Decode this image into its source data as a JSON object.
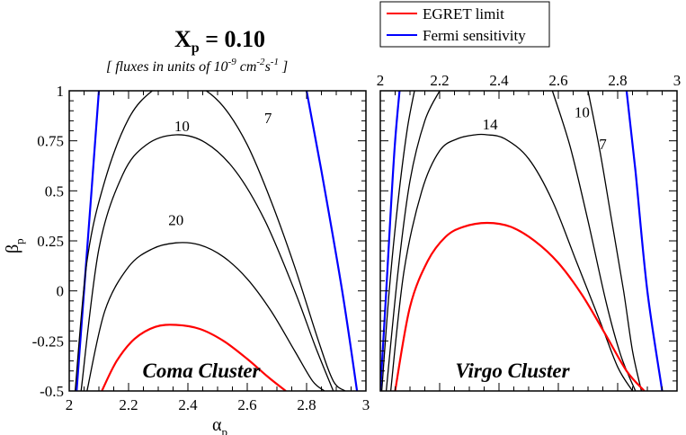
{
  "header": {
    "title_main": "X",
    "title_sub": "p",
    "title_value": " = 0.10",
    "units_prefix": "[ fluxes in units of 10",
    "units_exp1": "-9",
    "units_mid": " cm",
    "units_exp2": "-2",
    "units_s": "s",
    "units_exp3": "-1",
    "units_suffix": " ]"
  },
  "legend": {
    "items": [
      {
        "label": "EGRET limit",
        "color": "#ff0000"
      },
      {
        "label": "Fermi sensitivity",
        "color": "#0000ff"
      }
    ]
  },
  "colors": {
    "egret": "#ff0000",
    "fermi": "#0000ff",
    "contour": "#000000"
  },
  "chart_data": [
    {
      "type": "line",
      "panel_label": "Coma Cluster",
      "xlabel": "α",
      "xlabel_sub": "p",
      "ylabel": "β",
      "ylabel_sub": "p",
      "xlim": [
        2,
        3
      ],
      "ylim": [
        -0.5,
        1
      ],
      "xticks": [
        "2",
        "2.2",
        "2.4",
        "2.6",
        "2.8",
        "3"
      ],
      "yticks": [
        "-0.5",
        "-0.25",
        "0",
        "0.25",
        "0.5",
        "0.75",
        "1"
      ],
      "series": [
        {
          "kind": "fermi",
          "x": [
            2.025,
            2.05,
            2.075,
            2.1
          ],
          "y": [
            -0.5,
            0.0,
            0.5,
            1.0
          ]
        },
        {
          "kind": "fermi",
          "x": [
            2.8,
            2.85,
            2.92,
            2.97
          ],
          "y": [
            1.0,
            0.6,
            0.0,
            -0.5
          ]
        },
        {
          "kind": "contour",
          "x": [
            2.02,
            2.06,
            2.12,
            2.2,
            2.28,
            2.36,
            2.44,
            2.52,
            2.6,
            2.68,
            2.76,
            2.84,
            2.89,
            2.93
          ],
          "y": [
            -0.5,
            0.15,
            0.55,
            0.86,
            1.0,
            1.05,
            1.02,
            0.92,
            0.73,
            0.45,
            0.12,
            -0.25,
            -0.45,
            -0.5
          ]
        },
        {
          "kind": "contour",
          "x": [
            2.04,
            2.1,
            2.18,
            2.26,
            2.36,
            2.46,
            2.56,
            2.66,
            2.76,
            2.83,
            2.89
          ],
          "y": [
            -0.5,
            0.21,
            0.58,
            0.73,
            0.78,
            0.74,
            0.6,
            0.35,
            0.0,
            -0.28,
            -0.5
          ]
        },
        {
          "kind": "contour",
          "x": [
            2.06,
            2.12,
            2.2,
            2.28,
            2.36,
            2.44,
            2.52,
            2.6,
            2.68,
            2.76,
            2.82,
            2.86
          ],
          "y": [
            -0.5,
            -0.1,
            0.12,
            0.21,
            0.24,
            0.23,
            0.17,
            0.06,
            -0.1,
            -0.3,
            -0.45,
            -0.5
          ]
        },
        {
          "kind": "egret",
          "x": [
            2.11,
            2.16,
            2.22,
            2.29,
            2.36,
            2.44,
            2.52,
            2.6,
            2.67,
            2.73
          ],
          "y": [
            -0.5,
            -0.35,
            -0.24,
            -0.18,
            -0.17,
            -0.19,
            -0.25,
            -0.34,
            -0.43,
            -0.5
          ]
        }
      ],
      "contour_labels": [
        {
          "text": "10",
          "x": 2.38,
          "y": 0.78
        },
        {
          "text": "7",
          "x": 2.67,
          "y": 0.82
        },
        {
          "text": "20",
          "x": 2.36,
          "y": 0.31
        }
      ]
    },
    {
      "type": "line",
      "panel_label": "Virgo Cluster",
      "xlim": [
        2,
        3
      ],
      "ylim": [
        -0.5,
        1
      ],
      "xticks": [
        "2",
        "2.2",
        "2.4",
        "2.6",
        "2.8",
        "3"
      ],
      "series": [
        {
          "kind": "fermi",
          "x": [
            2.0,
            2.02,
            2.035,
            2.05,
            2.065
          ],
          "y": [
            -0.5,
            0.0,
            0.4,
            0.75,
            1.0
          ]
        },
        {
          "kind": "fermi",
          "x": [
            2.83,
            2.86,
            2.9,
            2.95
          ],
          "y": [
            1.0,
            0.6,
            0.0,
            -0.5
          ]
        },
        {
          "kind": "contour",
          "x": [
            2.005,
            2.03,
            2.06,
            2.09,
            2.115
          ],
          "y": [
            -0.5,
            0.0,
            0.45,
            0.8,
            1.0
          ]
        },
        {
          "kind": "contour",
          "x": [
            2.02,
            2.06,
            2.1,
            2.15,
            2.2
          ],
          "y": [
            -0.5,
            0.1,
            0.55,
            0.85,
            1.0
          ]
        },
        {
          "kind": "contour",
          "x": [
            2.035,
            2.08,
            2.14,
            2.2,
            2.26,
            2.32,
            2.36,
            2.42,
            2.5,
            2.58,
            2.66,
            2.74,
            2.8,
            2.85
          ],
          "y": [
            -0.5,
            0.1,
            0.5,
            0.7,
            0.76,
            0.78,
            0.78,
            0.76,
            0.66,
            0.45,
            0.15,
            -0.15,
            -0.38,
            -0.5
          ]
        },
        {
          "kind": "contour",
          "x": [
            2.58,
            2.64,
            2.7,
            2.76,
            2.81,
            2.86
          ],
          "y": [
            1.0,
            0.72,
            0.35,
            -0.05,
            -0.32,
            -0.5
          ]
        },
        {
          "kind": "contour",
          "x": [
            2.7,
            2.74,
            2.78,
            2.82,
            2.85,
            2.88
          ],
          "y": [
            1.0,
            0.7,
            0.35,
            0.0,
            -0.3,
            -0.5
          ]
        },
        {
          "kind": "egret",
          "x": [
            2.05,
            2.1,
            2.16,
            2.22,
            2.28,
            2.36,
            2.44,
            2.52,
            2.6,
            2.68,
            2.76,
            2.83,
            2.89
          ],
          "y": [
            -0.5,
            -0.08,
            0.15,
            0.27,
            0.32,
            0.34,
            0.32,
            0.25,
            0.14,
            -0.02,
            -0.22,
            -0.4,
            -0.5
          ]
        }
      ],
      "contour_labels": [
        {
          "text": "14",
          "x": 2.37,
          "y": 0.79
        },
        {
          "text": "10",
          "x": 2.68,
          "y": 0.85
        },
        {
          "text": "7",
          "x": 2.75,
          "y": 0.69
        }
      ]
    }
  ]
}
